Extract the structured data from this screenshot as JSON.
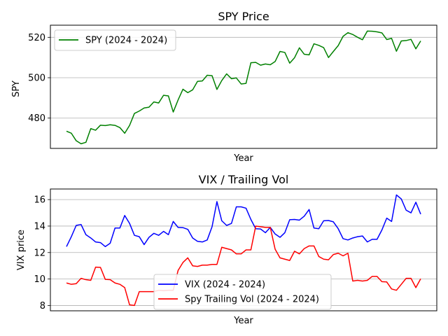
{
  "chart_data": [
    {
      "type": "line",
      "title": "SPY Price",
      "xlabel": "Year",
      "ylabel": "SPY",
      "ylim": [
        465,
        526
      ],
      "yticks": [
        480,
        500,
        520
      ],
      "grid": "y",
      "legend": "top-left",
      "series": [
        {
          "name": "SPY (2024 - 2024)",
          "color": "#008000",
          "values": [
            473.5,
            472.5,
            468.8,
            467.3,
            468.0,
            474.8,
            474.0,
            476.5,
            476.3,
            476.7,
            476.4,
            475.3,
            472.5,
            476.4,
            482.3,
            483.5,
            485.0,
            485.4,
            488.0,
            487.5,
            491.3,
            491.0,
            483.0,
            489.0,
            494.3,
            492.6,
            494.0,
            498.2,
            498.4,
            501.2,
            501.0,
            494.2,
            498.6,
            501.9,
            499.5,
            499.9,
            496.9,
            497.2,
            507.4,
            507.6,
            506.2,
            506.8,
            506.4,
            508.0,
            513.0,
            512.5,
            507.2,
            509.9,
            514.8,
            511.6,
            511.3,
            516.8,
            516.0,
            514.9,
            510.0,
            513.0,
            515.9,
            520.5,
            522.3,
            521.4,
            520.0,
            518.8,
            523.1,
            523.0,
            522.7,
            522.2,
            518.9,
            519.5,
            513.1,
            518.2,
            518.4,
            519.0,
            514.3,
            518.2
          ]
        }
      ]
    },
    {
      "type": "line",
      "title": "VIX / Trailing Vol",
      "xlabel": "Year",
      "ylabel": "VIX price",
      "ylim": [
        7.6,
        16.8
      ],
      "yticks": [
        8,
        10,
        12,
        14,
        16
      ],
      "grid": "y",
      "legend": "bottom-center",
      "series": [
        {
          "name": "VIX (2024 - 2024)",
          "color": "#0000ff",
          "values": [
            12.45,
            13.2,
            14.05,
            14.12,
            13.35,
            13.1,
            12.8,
            12.75,
            12.45,
            12.7,
            13.85,
            13.85,
            14.8,
            14.2,
            13.3,
            13.2,
            12.6,
            13.15,
            13.45,
            13.3,
            13.6,
            13.35,
            14.35,
            13.9,
            13.88,
            13.75,
            13.1,
            12.85,
            12.8,
            12.95,
            13.95,
            15.85,
            14.4,
            14.05,
            14.2,
            15.45,
            15.45,
            15.35,
            14.5,
            13.8,
            13.78,
            13.5,
            13.9,
            13.4,
            13.15,
            13.5,
            14.48,
            14.5,
            14.45,
            14.75,
            15.25,
            13.85,
            13.8,
            14.4,
            14.42,
            14.32,
            13.8,
            13.05,
            12.95,
            13.1,
            13.2,
            13.25,
            12.8,
            13.0,
            13.0,
            13.7,
            14.6,
            14.35,
            16.35,
            16.05,
            15.2,
            15.0,
            15.8,
            14.9
          ]
        },
        {
          "name": "Spy Trailing Vol (2024 - 2024)",
          "color": "#ff0000",
          "values": [
            9.7,
            9.6,
            9.65,
            10.05,
            9.95,
            9.9,
            10.9,
            10.88,
            9.97,
            9.95,
            9.7,
            9.6,
            9.35,
            8.05,
            8.0,
            9.05,
            9.05,
            9.05,
            9.05,
            9.15,
            9.12,
            9.15,
            9.15,
            10.65,
            11.25,
            11.6,
            11.0,
            10.95,
            11.05,
            11.05,
            11.1,
            11.1,
            12.4,
            12.3,
            12.2,
            11.9,
            11.9,
            12.2,
            12.2,
            14.0,
            13.95,
            13.9,
            13.9,
            12.25,
            11.6,
            11.5,
            11.4,
            12.1,
            11.9,
            12.3,
            12.5,
            12.5,
            11.7,
            11.5,
            11.45,
            11.85,
            11.95,
            11.75,
            11.95,
            9.85,
            9.9,
            9.85,
            9.9,
            10.2,
            10.2,
            9.8,
            9.78,
            9.25,
            9.15,
            9.6,
            10.05,
            10.05,
            9.35,
            10.02
          ]
        }
      ]
    }
  ]
}
